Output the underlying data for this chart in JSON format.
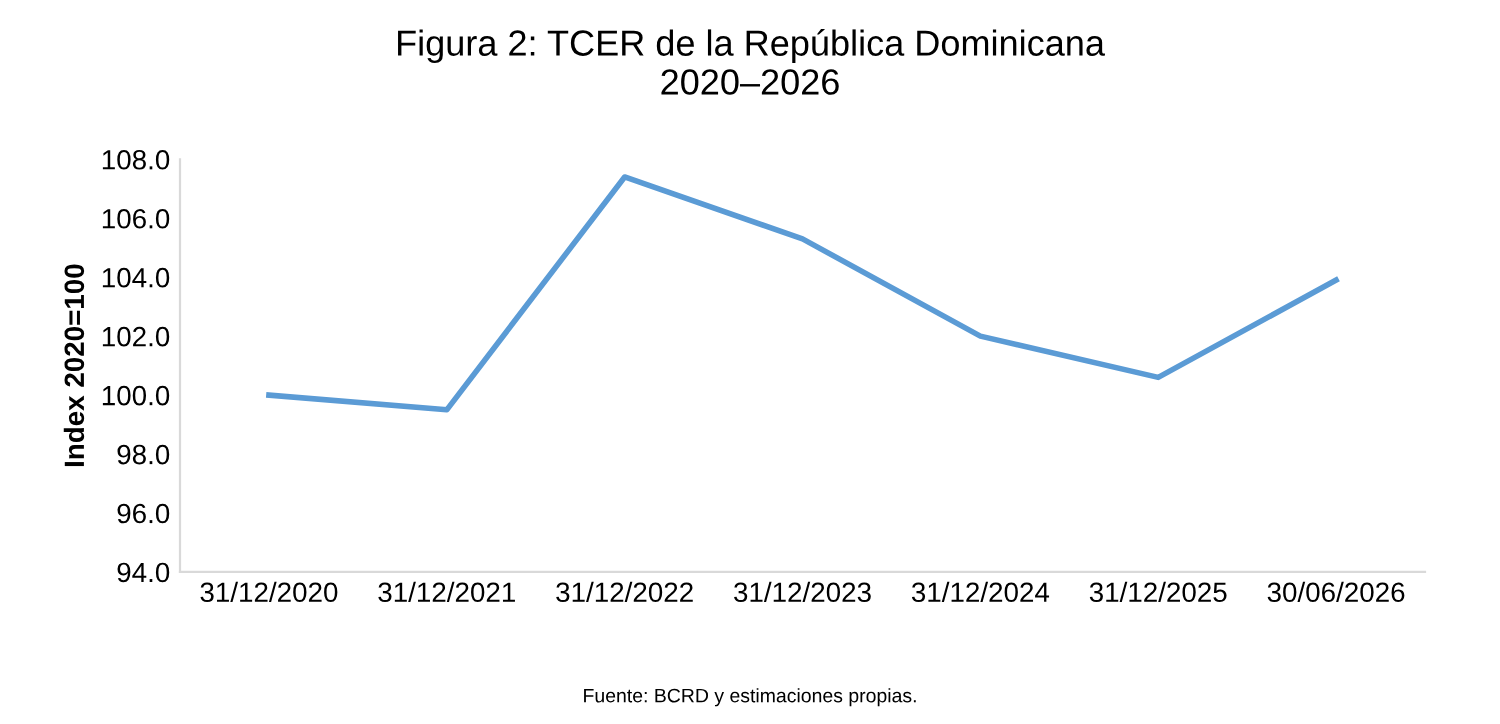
{
  "chart_data": {
    "type": "line",
    "title": "Figura 2: TCER de la República Dominicana\n2020–2026",
    "ylabel": "Index 2020=100",
    "categories": [
      "31/12/2020",
      "31/12/2021",
      "31/12/2022",
      "31/12/2023",
      "31/12/2024",
      "31/12/2025",
      "30/06/2026"
    ],
    "series": [
      {
        "color": "#5b9bd5",
        "values": [
          100.0,
          99.5,
          107.4,
          105.3,
          102.0,
          100.6,
          103.9
        ]
      }
    ],
    "ylim": [
      94,
      108
    ],
    "yticks": [
      {
        "value": 94,
        "label": "94.0"
      },
      {
        "value": 96,
        "label": "96.0"
      },
      {
        "value": 98,
        "label": "98.0"
      },
      {
        "value": 100,
        "label": "100.0"
      },
      {
        "value": 102,
        "label": "102.0"
      },
      {
        "value": 104,
        "label": "104.0"
      },
      {
        "value": 106,
        "label": "106.0"
      },
      {
        "value": 108,
        "label": "108.0"
      }
    ],
    "grid": false,
    "annotations": [
      "Fuente: BCRD y estimaciones propias."
    ]
  }
}
